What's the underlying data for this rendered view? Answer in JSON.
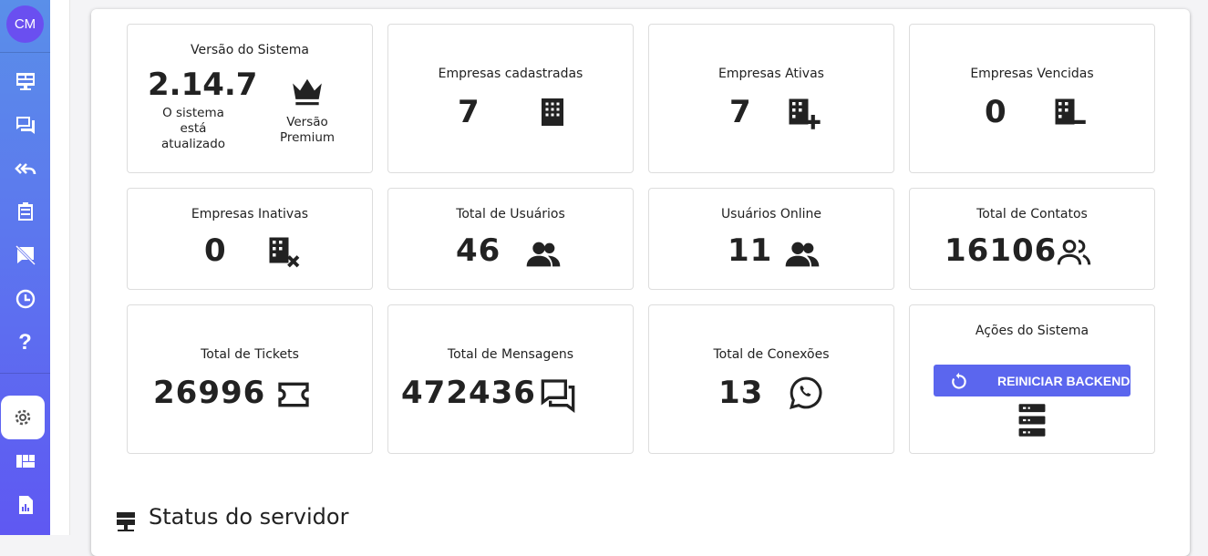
{
  "sidebar": {
    "avatar": "CM",
    "items": [
      "dashboard-icon",
      "chat-icon",
      "reply-all-icon",
      "clipboard-list-icon",
      "chat-off-icon",
      "clock-icon",
      "help-icon",
      "settings-icon",
      "kanban-icon",
      "report-icon"
    ],
    "active": "settings"
  },
  "cards": {
    "version": {
      "title": "Versão do Sistema",
      "value": "2.14.7",
      "status": "O sistema está atualizado",
      "plan": "Versão Premium"
    },
    "companies": {
      "title": "Empresas cadastradas",
      "value": "7"
    },
    "active": {
      "title": "Empresas Ativas",
      "value": "7"
    },
    "expired": {
      "title": "Empresas Vencidas",
      "value": "0"
    },
    "inactive": {
      "title": "Empresas Inativas",
      "value": "0"
    },
    "users": {
      "title": "Total de Usuários",
      "value": "46"
    },
    "online": {
      "title": "Usuários Online",
      "value": "11"
    },
    "contacts": {
      "title": "Total de Contatos",
      "value": "16106"
    },
    "tickets": {
      "title": "Total de Tickets",
      "value": "26996"
    },
    "messages": {
      "title": "Total de Mensagens",
      "value": "472436"
    },
    "connections": {
      "title": "Total de Conexões",
      "value": "13"
    },
    "actions": {
      "title": "Ações do Sistema",
      "button": "REINICIAR BACKEND"
    }
  },
  "status": {
    "title": "Status do servidor"
  },
  "colors": {
    "accent": "#5b66ee",
    "text": "#222222"
  }
}
